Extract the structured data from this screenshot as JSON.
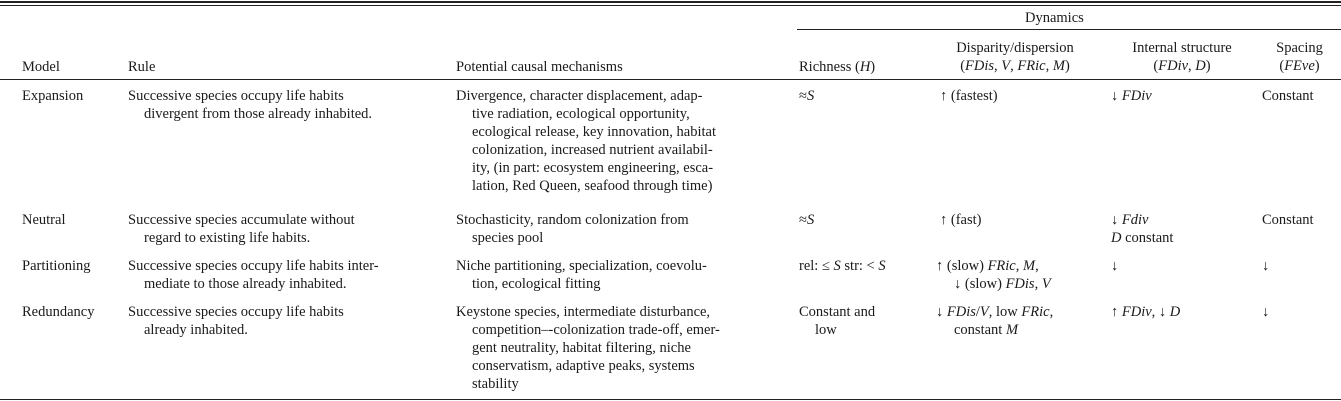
{
  "header": {
    "dynamics": "Dynamics",
    "model": "Model",
    "rule": "Rule",
    "mechanisms": "Potential causal mechanisms",
    "richness": "Richness (H)",
    "disparity_l1": "Disparity/dispersion",
    "disparity_l2": "(FDis, V, FRic, M)",
    "internal_l1": "Internal structure",
    "internal_l2": "(FDiv, D)",
    "spacing_l1": "Spacing",
    "spacing_l2": "(FEve)"
  },
  "rows": [
    {
      "model": "Expansion",
      "rule": [
        "Successive species occupy life habits",
        "divergent from those already inhabited."
      ],
      "mechanisms": [
        "Divergence, character displacement, adap-",
        "tive radiation, ecological opportunity,",
        "ecological release, key innovation, habitat",
        "colonization, increased nutrient availabil-",
        "ity, (in part: ecosystem engineering, esca-",
        "lation, Red Queen, seafood through time)"
      ],
      "richness": [
        "≈S"
      ],
      "disparity": [
        "↑ (fastest)"
      ],
      "internal": [
        "↓ FDiv"
      ],
      "spacing": "Constant"
    },
    {
      "model": "Neutral",
      "rule": [
        "Successive species accumulate without",
        "regard to existing life habits."
      ],
      "mechanisms": [
        "Stochasticity, random colonization from",
        "species pool"
      ],
      "richness": [
        "≈S"
      ],
      "disparity": [
        "↑ (fast)"
      ],
      "internal": [
        "↓ Fdiv",
        "D constant"
      ],
      "spacing": "Constant"
    },
    {
      "model": "Partitioning",
      "rule": [
        "Successive species occupy life habits inter-",
        "mediate to those already inhabited."
      ],
      "mechanisms": [
        "Niche partitioning, specialization, coevolu-",
        "tion, ecological fitting"
      ],
      "richness": [
        "rel: ≤ S str: < S"
      ],
      "disparity": [
        "↑ (slow) FRic, M,",
        "↓ (slow) FDis, V"
      ],
      "internal": [
        "↓"
      ],
      "spacing": "↓"
    },
    {
      "model": "Redundancy",
      "rule": [
        "Successive species occupy life habits",
        "already inhabited."
      ],
      "mechanisms": [
        "Keystone species, intermediate disturbance,",
        "competition–-colonization trade-off, emer-",
        "gent neutrality, habitat filtering, niche",
        "conservatism, adaptive peaks, systems",
        "stability"
      ],
      "richness": [
        "Constant and",
        "low"
      ],
      "disparity": [
        "↓ FDis/V, low FRic,",
        "constant M"
      ],
      "internal": [
        "↑ FDiv, ↓ D"
      ],
      "spacing": "↓"
    }
  ]
}
